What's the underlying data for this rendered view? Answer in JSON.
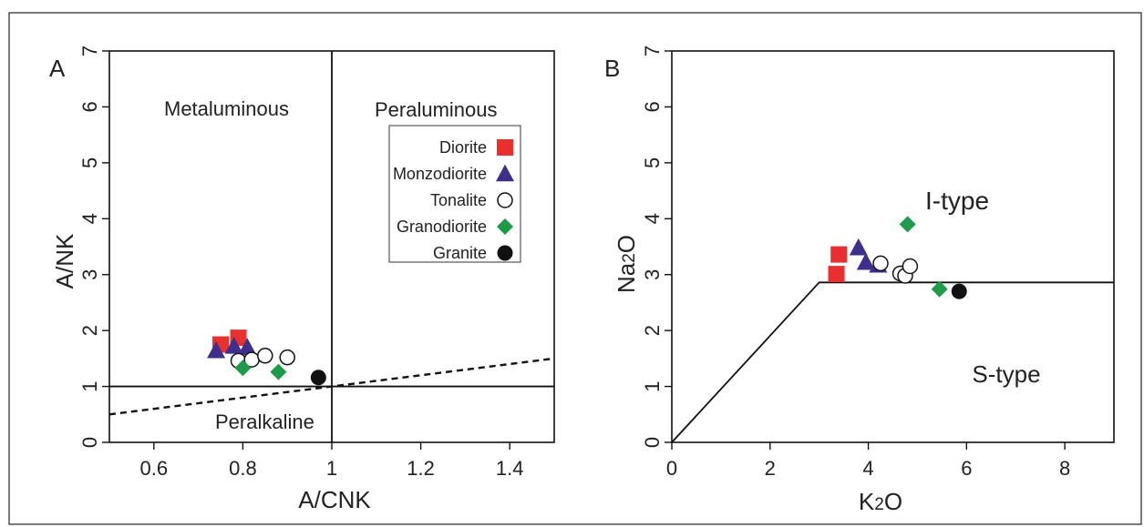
{
  "colors": {
    "diorite": "#e8312f",
    "monzodiorite": "#3f2e8c",
    "tonalite": "#ffffff",
    "granodiorite": "#1e9a48",
    "granite": "#111111"
  },
  "legend": [
    {
      "label": "Diorite",
      "series": "diorite",
      "marker": "square"
    },
    {
      "label": "Monzodiorite",
      "series": "monzodiorite",
      "marker": "triangle"
    },
    {
      "label": "Tonalite",
      "series": "tonalite",
      "marker": "open-circle"
    },
    {
      "label": "Granodiorite",
      "series": "granodiorite",
      "marker": "diamond"
    },
    {
      "label": "Granite",
      "series": "granite",
      "marker": "filled-circle"
    }
  ],
  "chart_data": [
    {
      "type": "scatter",
      "panel": "A",
      "xlabel": "A/CNK",
      "ylabel": "A/NK",
      "xlim": [
        0.5,
        1.5
      ],
      "ylim": [
        0,
        7
      ],
      "xticks": [
        0.6,
        0.8,
        1,
        1.2,
        1.4
      ],
      "xtick_labels": [
        "0.6",
        "0.8",
        "1",
        "1.2",
        "1.4"
      ],
      "yticks": [
        0,
        1,
        2,
        3,
        4,
        5,
        6,
        7
      ],
      "ytick_labels": [
        "0",
        "1",
        "2",
        "3",
        "4",
        "5",
        "6",
        "7"
      ],
      "grid": false,
      "legend_position": "top-right",
      "regions": {
        "metaluminous": "Metaluminous",
        "peraluminous": "Peraluminous",
        "peralkaline": "Peralkaline"
      },
      "lines": [
        {
          "style": "solid",
          "points": [
            [
              1,
              0
            ],
            [
              1,
              7
            ]
          ]
        },
        {
          "style": "solid",
          "points": [
            [
              0.5,
              1
            ],
            [
              1.5,
              1
            ]
          ]
        },
        {
          "style": "dashed",
          "points": [
            [
              0.5,
              0.5
            ],
            [
              1.5,
              1.5
            ]
          ]
        }
      ],
      "series": [
        {
          "name": "Diorite",
          "key": "diorite",
          "marker": "square",
          "points": [
            [
              0.75,
              1.75
            ],
            [
              0.79,
              1.87
            ]
          ]
        },
        {
          "name": "Monzodiorite",
          "key": "monzodiorite",
          "marker": "triangle",
          "points": [
            [
              0.74,
              1.64
            ],
            [
              0.78,
              1.72
            ],
            [
              0.81,
              1.7
            ]
          ]
        },
        {
          "name": "Tonalite",
          "key": "tonalite",
          "marker": "open-circle",
          "points": [
            [
              0.79,
              1.46
            ],
            [
              0.82,
              1.48
            ],
            [
              0.85,
              1.55
            ],
            [
              0.9,
              1.52
            ]
          ]
        },
        {
          "name": "Granodiorite",
          "key": "granodiorite",
          "marker": "diamond",
          "points": [
            [
              0.8,
              1.33
            ],
            [
              0.88,
              1.26
            ]
          ]
        },
        {
          "name": "Granite",
          "key": "granite",
          "marker": "filled-circle",
          "points": [
            [
              0.97,
              1.16
            ]
          ]
        }
      ]
    },
    {
      "type": "scatter",
      "panel": "B",
      "xlabel": "K2O",
      "ylabel": "Na2O",
      "xlim": [
        0,
        9
      ],
      "ylim": [
        0,
        7
      ],
      "xticks": [
        0,
        2,
        4,
        6,
        8
      ],
      "xtick_labels": [
        "0",
        "2",
        "4",
        "6",
        "8"
      ],
      "yticks": [
        0,
        1,
        2,
        3,
        4,
        5,
        6,
        7
      ],
      "ytick_labels": [
        "0",
        "1",
        "2",
        "3",
        "4",
        "5",
        "6",
        "7"
      ],
      "grid": false,
      "regions": {
        "i_type": "I-type",
        "s_type": "S-type"
      },
      "lines": [
        {
          "style": "solid",
          "points": [
            [
              0,
              0
            ],
            [
              3,
              2.86
            ],
            [
              9,
              2.86
            ]
          ]
        }
      ],
      "series": [
        {
          "name": "Diorite",
          "key": "diorite",
          "marker": "square",
          "points": [
            [
              3.4,
              3.36
            ],
            [
              3.35,
              3.01
            ]
          ]
        },
        {
          "name": "Monzodiorite",
          "key": "monzodiorite",
          "marker": "triangle",
          "points": [
            [
              3.8,
              3.48
            ],
            [
              3.95,
              3.22
            ],
            [
              4.2,
              3.17
            ]
          ]
        },
        {
          "name": "Tonalite",
          "key": "tonalite",
          "marker": "open-circle",
          "points": [
            [
              4.25,
              3.2
            ],
            [
              4.65,
              3.02
            ],
            [
              4.75,
              2.98
            ],
            [
              4.85,
              3.15
            ]
          ]
        },
        {
          "name": "Granodiorite",
          "key": "granodiorite",
          "marker": "diamond",
          "points": [
            [
              4.8,
              3.9
            ],
            [
              5.45,
              2.74
            ]
          ]
        },
        {
          "name": "Granite",
          "key": "granite",
          "marker": "filled-circle",
          "points": [
            [
              5.85,
              2.7
            ]
          ]
        }
      ]
    }
  ]
}
